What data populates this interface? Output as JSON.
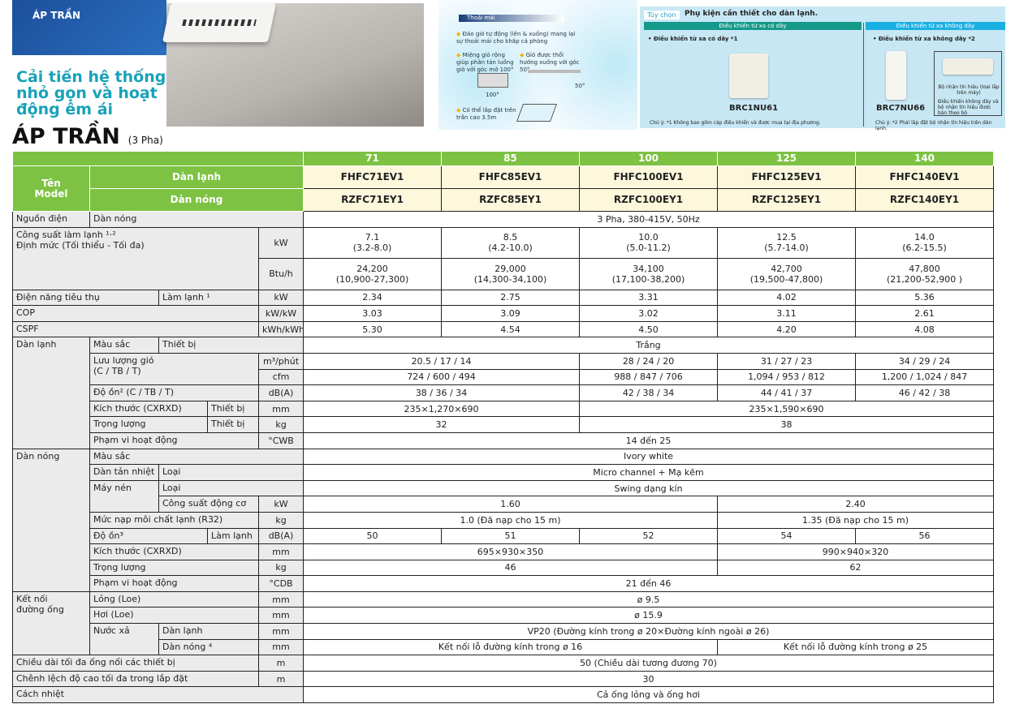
{
  "banner": {
    "tag": "ÁP TRẦN",
    "headline": "Cải tiến hệ thống nhỏ gọn và hoạt động êm ái",
    "title": "ÁP TRẦN",
    "title_suffix": "(3 Pha)"
  },
  "comfort": {
    "heading": "Thoải mái",
    "bullets": [
      "Đảo gió tự động (lên & xuống) mang lại sự thoải mái cho khắp cả phòng",
      "Miệng gió rộng giúp phân tán luồng gió với góc mở 100°",
      "Gió được thổi hướng xuống với góc 50°",
      "Có thể lắp đặt trên trần cao 3.5m"
    ],
    "angle_100": "100°",
    "angle_50": "50°"
  },
  "accessories": {
    "tag": "Tùy chọn",
    "title": "Phụ kiện cần thiết cho dàn lạnh.",
    "wired_bar": "Điều khiển từ xa có dây",
    "wireless_bar": "Điều khiển từ xa không dây",
    "wired_bullet": "• Điều khiển từ xa có dây *1",
    "wireless_bullet": "• Điều khiển từ xa không dây *2",
    "wired_model": "BRC1NU61",
    "wireless_model": "BRC7NU66",
    "receiver_label": "Bộ nhận tín hiệu (loại lắp trên máy)",
    "receiver_note": "Điều khiển không dây và bộ nhận tín hiệu được bán theo bộ",
    "wired_note": "Chú ý: *1 Không bao gồm cáp điều khiển và được mua tại địa phương.",
    "wireless_note": "Chú ý: *2 Phải lắp đặt bộ nhận tín hiệu trên dàn lạnh."
  },
  "colors": {
    "header_green": "#7dc242",
    "model_yellow": "#fdf8dc",
    "label_gray": "#ebebeb",
    "brand_blue": "#1d4f9a",
    "teal": "#17a2b8"
  },
  "table": {
    "rows": [
      [
        "",
        "71",
        "85",
        "100",
        "125",
        "140"
      ],
      [
        "Tên\nModel",
        "Dàn lạnh",
        "FHFC71EV1",
        "FHFC85EV1",
        "FHFC100EV1",
        "FHFC125EV1",
        "FHFC140EV1"
      ],
      [
        "Dàn nóng",
        "RZFC71EY1",
        "RZFC85EY1",
        "RZFC100EY1",
        "RZFC125EY1",
        "RZFC140EY1"
      ],
      [
        "Nguồn điện",
        "Dàn nóng",
        "3 Pha, 380-415V, 50Hz"
      ],
      [
        "Công suất làm lạnh ¹·²\nĐịnh mức (Tối thiểu - Tối đa)",
        "kW",
        "7.1\n(3.2-8.0)",
        "8.5\n(4.2-10.0)",
        "10.0\n(5.0-11.2)",
        "12.5\n(5.7-14.0)",
        "14.0\n(6.2-15.5)"
      ],
      [
        "Btu/h",
        "24,200\n(10,900-27,300)",
        "29,000\n(14,300-34,100)",
        "34,100\n(17,100-38,200)",
        "42,700\n(19,500-47,800)",
        "47,800\n(21,200-52,900 )"
      ],
      [
        "Điện năng tiêu thụ",
        "Làm lạnh ¹",
        "kW",
        "2.34",
        "2.75",
        "3.31",
        "4.02",
        "5.36"
      ],
      [
        "COP",
        "kW/kW",
        "3.03",
        "3.09",
        "3.02",
        "3.11",
        "2.61"
      ],
      [
        "CSPF",
        "kWh/kWh",
        "5.30",
        "4.54",
        "4.50",
        "4.20",
        "4.08"
      ],
      [
        "Dàn lạnh",
        "Màu sắc",
        "Thiết bị",
        "Trắng"
      ],
      [
        "Lưu lượng gió\n(C / TB / T)",
        "m³/phút",
        "20.5 / 17 / 14",
        "28 / 24 / 20",
        "31 / 27 / 23",
        "34 / 29 / 24"
      ],
      [
        "cfm",
        "724 / 600 / 494",
        "988 / 847 / 706",
        "1,094 / 953 / 812",
        "1,200 / 1,024 / 847"
      ],
      [
        "Độ ồn² (C / TB / T)",
        "dB(A)",
        "38 / 36 / 34",
        "42 / 38 / 34",
        "44 / 41 / 37",
        "46 / 42 / 38"
      ],
      [
        "Kích thước (CXRXD)",
        "Thiết bị",
        "mm",
        "235×1,270×690",
        "235×1,590×690"
      ],
      [
        "Trọng lượng",
        "Thiết bị",
        "kg",
        "32",
        "38"
      ],
      [
        "Phạm vi hoạt động",
        "°CWB",
        "14 đến 25"
      ],
      [
        "Dàn nóng",
        "Màu sắc",
        "Ivory white"
      ],
      [
        "Dàn tản nhiệt",
        "Loại",
        "Micro channel + Mạ kẽm"
      ],
      [
        "Máy nén",
        "Loại",
        "Swing dạng kín"
      ],
      [
        "Công suất động cơ",
        "kW",
        "1.60",
        "2.40"
      ],
      [
        "Mức nạp môi chất lạnh (R32)",
        "kg",
        "1.0 (Đã nạp cho 15 m)",
        "1.35 (Đã nạp cho 15 m)"
      ],
      [
        "Độ ồn³",
        "Làm lạnh",
        "dB(A)",
        "50",
        "51",
        "52",
        "54",
        "56"
      ],
      [
        "Kích thước (CXRXD)",
        "mm",
        "695×930×350",
        "990×940×320"
      ],
      [
        "Trọng lượng",
        "kg",
        "46",
        "62"
      ],
      [
        "Phạm vi hoạt động",
        "°CDB",
        "21 đến 46"
      ],
      [
        "Kết nối\nđường ống",
        "Lỏng (Loe)",
        "mm",
        "ø 9.5"
      ],
      [
        "Hơi (Loe)",
        "mm",
        "ø 15.9"
      ],
      [
        "Nước xả",
        "Dàn lạnh",
        "mm",
        "VP20 (Đường kính trong ø 20×Đường kính ngoài ø 26)"
      ],
      [
        "Dàn nóng ⁴",
        "mm",
        "Kết nối lỗ đường kính trong ø 16",
        "Kết nối lỗ đường kính trong ø 25"
      ],
      [
        "Chiều dài tối đa ống nối các thiết bị",
        "m",
        "50 (Chiều dài tương đương 70)"
      ],
      [
        "Chênh lệch độ cao tối đa trong lắp đặt",
        "m",
        "30"
      ],
      [
        "Cách nhiệt",
        "Cả ống lỏng và ống hơi"
      ]
    ]
  }
}
